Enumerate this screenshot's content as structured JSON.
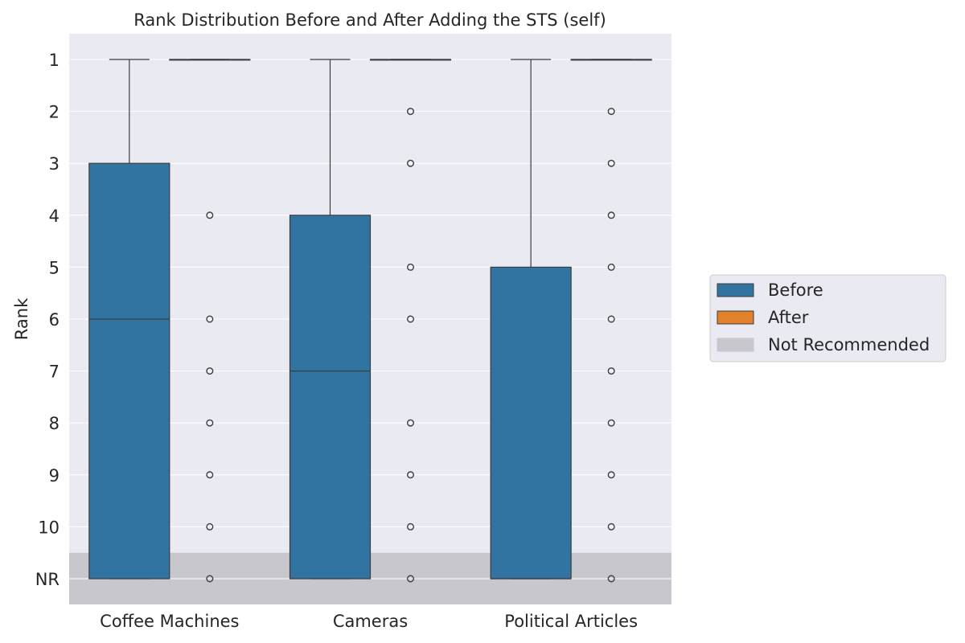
{
  "chart_data": {
    "type": "box",
    "title": "Rank Distribution Before and After Adding the STS (self)",
    "ylabel": "Rank",
    "xlabel": "",
    "y_ticks": [
      "1",
      "2",
      "3",
      "4",
      "5",
      "6",
      "7",
      "8",
      "9",
      "10",
      "NR"
    ],
    "y_range": [
      0.5,
      11.5
    ],
    "categories": [
      "Coffee Machines",
      "Cameras",
      "Political Articles"
    ],
    "shaded_region": {
      "label": "Not Recommended",
      "from": 10.5,
      "to": 11.5,
      "color": "#c8c7cd"
    },
    "colors": {
      "Before": "#3274a1",
      "After": "#e1812c",
      "background": "#eaeaf2",
      "grid": "#ffffff",
      "line": "#3d3d3d"
    },
    "series": [
      {
        "name": "Before",
        "boxes": [
          {
            "whisker_low": 1,
            "q1": 3,
            "median": 6,
            "q3": 11,
            "whisker_high": 11,
            "outliers": []
          },
          {
            "whisker_low": 1,
            "q1": 4,
            "median": 7,
            "q3": 11,
            "whisker_high": 11,
            "outliers": []
          },
          {
            "whisker_low": 1,
            "q1": 5,
            "median": 11,
            "q3": 11,
            "whisker_high": 11,
            "outliers": []
          }
        ]
      },
      {
        "name": "After",
        "boxes": [
          {
            "whisker_low": 1,
            "q1": 1,
            "median": 1,
            "q3": 1,
            "whisker_high": 1,
            "outliers": [
              4,
              6,
              7,
              8,
              9,
              10,
              11
            ]
          },
          {
            "whisker_low": 1,
            "q1": 1,
            "median": 1,
            "q3": 1,
            "whisker_high": 1,
            "outliers": [
              2,
              3,
              5,
              6,
              8,
              9,
              10,
              11
            ]
          },
          {
            "whisker_low": 1,
            "q1": 1,
            "median": 1,
            "q3": 1,
            "whisker_high": 1,
            "outliers": [
              2,
              3,
              4,
              5,
              6,
              7,
              8,
              9,
              10,
              11
            ]
          }
        ]
      }
    ],
    "legend": {
      "placement": "right",
      "entries": [
        {
          "label": "Before",
          "color": "#3274a1"
        },
        {
          "label": "After",
          "color": "#e1812c"
        },
        {
          "label": "Not Recommended",
          "color": "#c8c7cd"
        }
      ]
    }
  }
}
